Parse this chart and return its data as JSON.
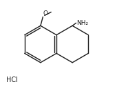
{
  "background_color": "#ffffff",
  "line_color": "#1a1a1a",
  "line_width": 1.0,
  "text_NH2": "NH₂",
  "text_O": "O",
  "text_HCl": "HCl",
  "font_size_label": 6.5,
  "font_size_hcl": 7.0
}
